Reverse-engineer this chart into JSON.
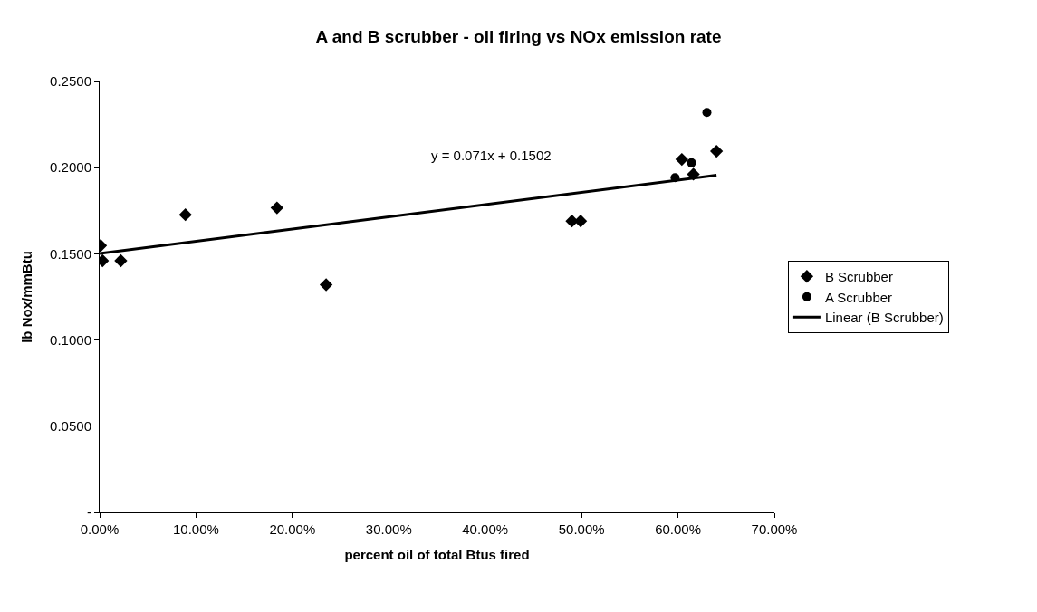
{
  "chart_data": {
    "type": "scatter",
    "title": "A and B scrubber - oil firing vs NOx emission rate",
    "xlabel": "percent oil of total Btus fired",
    "ylabel": "lb Nox/mmBtu",
    "annotations": [
      "y = 0.071x + 0.1502"
    ],
    "series": [
      {
        "name": "B Scrubber",
        "color": "#000000",
        "marker": "diamond",
        "x": [
          0.1,
          0.3,
          2.2,
          8.9,
          18.4,
          23.5,
          49.0,
          49.9,
          60.4,
          61.6,
          64.0
        ],
        "values": [
          0.1548,
          0.146,
          0.146,
          0.1727,
          0.1767,
          0.1321,
          0.169,
          0.169,
          0.2048,
          0.1962,
          0.2095
        ]
      },
      {
        "name": "A Scrubber",
        "color": "#000000",
        "marker": "circle",
        "x": [
          59.7,
          61.4,
          63.0
        ],
        "values": [
          0.1942,
          0.2028,
          0.232
        ]
      },
      {
        "name": "Linear (B Scrubber)",
        "type": "line",
        "color": "#000000",
        "marker": "none",
        "line_style": "solid",
        "x": [
          0,
          64.0
        ],
        "values": [
          0.1502,
          0.1956
        ]
      }
    ],
    "xlim": [
      0,
      70
    ],
    "ylim": [
      0,
      0.25
    ],
    "xticks": [
      {
        "value": 0,
        "label": "0.00%"
      },
      {
        "value": 10,
        "label": "10.00%"
      },
      {
        "value": 20,
        "label": "20.00%"
      },
      {
        "value": 30,
        "label": "30.00%"
      },
      {
        "value": 40,
        "label": "40.00%"
      },
      {
        "value": 50,
        "label": "50.00%"
      },
      {
        "value": 60,
        "label": "60.00%"
      },
      {
        "value": 70,
        "label": "70.00%"
      }
    ],
    "yticks": [
      {
        "value": 0,
        "label": "-"
      },
      {
        "value": 0.05,
        "label": "0.0500"
      },
      {
        "value": 0.1,
        "label": "0.1000"
      },
      {
        "value": 0.15,
        "label": "0.1500"
      },
      {
        "value": 0.2,
        "label": "0.2000"
      },
      {
        "value": 0.25,
        "label": "0.2500"
      }
    ],
    "legend": "right"
  }
}
